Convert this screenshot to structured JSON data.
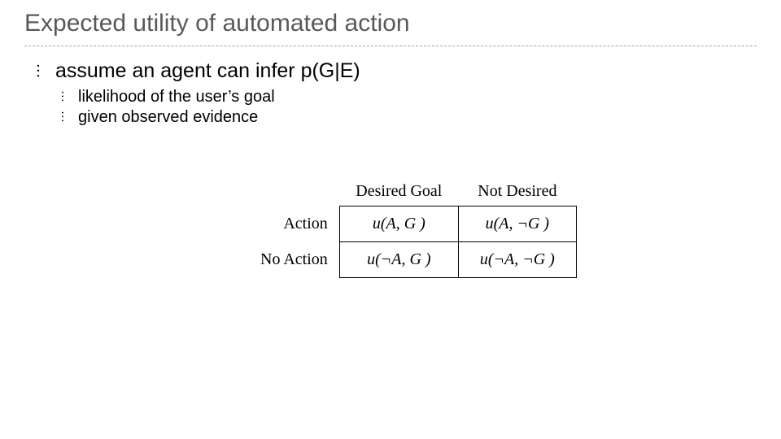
{
  "title": "Expected utility of automated action",
  "title_color": "#595959",
  "title_fontsize": 30,
  "divider_color": "#a6a6a6",
  "bullets": {
    "main": "assume an agent can infer p(G|E)",
    "sub1": "likelihood of the user’s goal",
    "sub2": "given observed evidence"
  },
  "bullet_marker": "︙",
  "bullet_fontsize_level1": 25,
  "bullet_fontsize_level2": 20,
  "utility_table": {
    "type": "table",
    "font_family": "Times New Roman",
    "border_color": "#000000",
    "cell_fontsize": 20,
    "header_fontsize": 20,
    "columns": [
      "Desired Goal",
      "Not Desired"
    ],
    "rows": [
      "Action",
      "No Action"
    ],
    "cells": {
      "r0c0": "u(A, G )",
      "r0c1": "u(A, ¬G )",
      "r1c0": "u(¬A, G )",
      "r1c1": "u(¬A, ¬G )"
    }
  },
  "background_color": "#ffffff"
}
